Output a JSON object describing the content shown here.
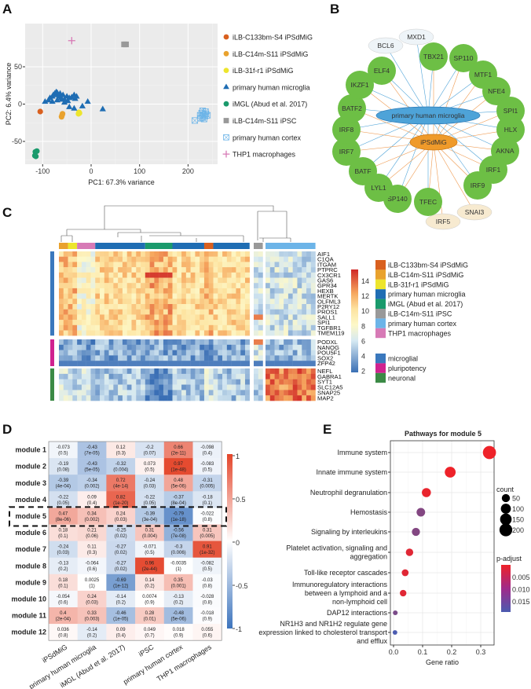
{
  "panels": {
    "a": "A",
    "b": "B",
    "c": "C",
    "d": "D",
    "e": "E"
  },
  "chart_data": [
    {
      "panel": "A",
      "type": "scatter",
      "xlabel": "PC1: 67.3% variance",
      "ylabel": "PC2: 6.4% variance",
      "xticks": [
        "-100",
        "0",
        "100",
        "200"
      ],
      "yticks": [
        "-50",
        "0",
        "50"
      ],
      "xlim": [
        -135,
        260
      ],
      "ylim": [
        -78,
        92
      ],
      "grid": true,
      "legend_placement": "right",
      "series": [
        {
          "name": "iLB-C133bm-S4 iPSdMiG",
          "marker": "circle",
          "color": "#d9601f",
          "points": [
            [
              -105,
              -10
            ]
          ]
        },
        {
          "name": "iLB-C14m-S11 iPSdMiG",
          "marker": "circle",
          "color": "#e9a22e",
          "points": [
            [
              -61,
              -17
            ],
            [
              -60,
              -15
            ],
            [
              -59,
              -13
            ]
          ]
        },
        {
          "name": "iLB-31f-r1 iPSdMiG",
          "marker": "circle",
          "color": "#ede52d",
          "points": [
            [
              -26,
              -13
            ],
            [
              -25,
              -11
            ],
            [
              -24,
              -12
            ]
          ]
        },
        {
          "name": "primary human microglia",
          "marker": "triangle",
          "color": "#1f6db3",
          "points": [
            [
              -95,
              3
            ],
            [
              -88,
              5
            ],
            [
              -85,
              8
            ],
            [
              -80,
              10
            ],
            [
              -78,
              12
            ],
            [
              -75,
              14
            ],
            [
              -72,
              16
            ],
            [
              -70,
              15
            ],
            [
              -68,
              12
            ],
            [
              -66,
              10
            ],
            [
              -64,
              14
            ],
            [
              -62,
              8
            ],
            [
              -60,
              6
            ],
            [
              -58,
              12
            ],
            [
              -55,
              6
            ],
            [
              -50,
              10
            ],
            [
              -48,
              4
            ],
            [
              -45,
              8
            ],
            [
              -40,
              9
            ],
            [
              -35,
              12
            ],
            [
              -33,
              7
            ],
            [
              -30,
              10
            ],
            [
              -55,
              2
            ],
            [
              -45,
              -4
            ],
            [
              -35,
              -6
            ],
            [
              -18,
              -3
            ],
            [
              -7,
              3
            ],
            [
              24,
              -7
            ],
            [
              -70,
              5
            ],
            [
              -80,
              3
            ]
          ]
        },
        {
          "name": "iMGL (Abud et al. 2017)",
          "marker": "circle",
          "color": "#1a9a6c",
          "points": [
            [
              -115,
              -64
            ],
            [
              -112,
              -63
            ],
            [
              -116,
              -69
            ],
            [
              -114,
              -70
            ]
          ]
        },
        {
          "name": "iLB-C14m-S11 iPSC",
          "marker": "square",
          "color": "#999999",
          "points": [
            [
              68,
              80
            ],
            [
              72,
              80
            ]
          ]
        },
        {
          "name": "primary human cortex",
          "marker": "boxed-x",
          "color": "#6cb4e8",
          "points": [
            [
              214,
              -22
            ],
            [
              225,
              -15
            ],
            [
              228,
              -12
            ],
            [
              230,
              -18
            ],
            [
              232,
              -14
            ],
            [
              235,
              -16
            ],
            [
              237,
              -13
            ],
            [
              240,
              -15
            ],
            [
              230,
              -9
            ],
            [
              233,
              -20
            ],
            [
              226,
              -19
            ],
            [
              236,
              -10
            ]
          ]
        },
        {
          "name": "THP1 macrophages",
          "marker": "plus",
          "color": "#d77ab6",
          "points": [
            [
              -40,
              85
            ]
          ]
        }
      ]
    },
    {
      "panel": "B",
      "type": "network",
      "hubs": [
        {
          "label": "primary human microglia",
          "color": "#3aa7e0"
        },
        {
          "label": "iPSdMiG",
          "color": "#ef9a2a"
        }
      ],
      "nodes": [
        {
          "label": "MXD1",
          "kind": "minor-blue"
        },
        {
          "label": "BCL6",
          "kind": "minor-blue"
        },
        {
          "label": "TBX21",
          "kind": "shared"
        },
        {
          "label": "SP110",
          "kind": "shared"
        },
        {
          "label": "MTF1",
          "kind": "shared"
        },
        {
          "label": "NFE4",
          "kind": "shared"
        },
        {
          "label": "SPI1",
          "kind": "shared"
        },
        {
          "label": "HLX",
          "kind": "shared"
        },
        {
          "label": "AKNA",
          "kind": "shared"
        },
        {
          "label": "IRF1",
          "kind": "shared"
        },
        {
          "label": "IRF9",
          "kind": "shared"
        },
        {
          "label": "SNAI3",
          "kind": "minor-orange"
        },
        {
          "label": "IRF5",
          "kind": "minor-orange"
        },
        {
          "label": "TFEC",
          "kind": "shared"
        },
        {
          "label": "SP140",
          "kind": "shared"
        },
        {
          "label": "LYL1",
          "kind": "shared"
        },
        {
          "label": "BATF",
          "kind": "shared"
        },
        {
          "label": "IRF7",
          "kind": "shared"
        },
        {
          "label": "IRF8",
          "kind": "shared"
        },
        {
          "label": "BATF2",
          "kind": "shared"
        },
        {
          "label": "IKZF1",
          "kind": "shared"
        },
        {
          "label": "ELF4",
          "kind": "shared"
        }
      ],
      "colors": {
        "shared": "#6dbf45",
        "minor-blue": "#eef4f8",
        "minor-orange": "#f7ead0",
        "edge_microglia": "#4ea3d8",
        "edge_ipsdmig": "#ef9a50"
      }
    },
    {
      "panel": "C",
      "type": "heatmap",
      "colorbar": {
        "ticks": [
          "14",
          "12",
          "10",
          "8",
          "6",
          "4",
          "2"
        ],
        "range": [
          2,
          15
        ]
      },
      "column_groups": [
        {
          "group": "iLB-C14m-S11 iPSdMiG",
          "color": "#e9a22e",
          "n": 2,
          "levels": [
            11,
            4,
            6
          ]
        },
        {
          "group": "iLB-31f-r1 iPSdMiG",
          "color": "#ede52d",
          "n": 2,
          "levels": [
            11,
            4,
            6
          ]
        },
        {
          "group": "THP1 macrophages",
          "color": "#d77ab6",
          "n": 4,
          "levels": [
            8,
            3.5,
            6
          ]
        },
        {
          "group": "primary human microglia",
          "color": "#1f6db3",
          "n": 11,
          "levels": [
            10,
            4,
            5
          ]
        },
        {
          "group": "iMGL (Abud et al. 2017)",
          "color": "#1a9a6c",
          "n": 6,
          "levels": [
            11.5,
            4,
            3
          ]
        },
        {
          "group": "primary human microglia",
          "color": "#1f6db3",
          "n": 7,
          "levels": [
            10,
            4,
            5
          ]
        },
        {
          "group": "iLB-C133bm-S4 iPSdMiG",
          "color": "#d9601f",
          "n": 2,
          "levels": [
            11,
            4,
            6
          ]
        },
        {
          "group": "primary human microglia",
          "color": "#1f6db3",
          "n": 8,
          "levels": [
            10,
            4,
            5
          ]
        },
        {
          "group": "iLB-C14m-S11 iPSC",
          "color": "#999999",
          "n": 2,
          "levels": [
            6,
            6,
            5.5
          ]
        },
        {
          "group": "primary human cortex",
          "color": "#6cb4e8",
          "n": 11,
          "levels": [
            6,
            4.5,
            13
          ]
        }
      ],
      "gene_sets": [
        {
          "name": "microglial",
          "color": "#3a78bd",
          "genes": [
            "AIF1",
            "C1QA",
            "ITGAM",
            "PTPRC",
            "CX3CR1",
            "GAS6",
            "GPR34",
            "HEXB",
            "MERTK",
            "OLFML3",
            "P2RY12",
            "PROS1",
            "SALL1",
            "SPI1",
            "TGFBR1",
            "TMEM119"
          ]
        },
        {
          "name": "pluripotency",
          "color": "#d0228f",
          "genes": [
            "PODXL",
            "NANOG",
            "POU5F1",
            "SOX2",
            "ZFP42"
          ]
        },
        {
          "name": "neuronal",
          "color": "#3b8a45",
          "genes": [
            "NEFL",
            "GABRA1",
            "SYT1",
            "SLC12A5",
            "SNAP25",
            "MAP2"
          ]
        }
      ],
      "legend": [
        "iLB-C133bm-S4 iPSdMiG",
        "iLB-C14m-S11 iPSdMiG",
        "iLB-31f-r1 iPSdMiG",
        "primary human microglia",
        "iMGL (Abud et al. 2017)",
        "iLB-C14m-S11 iPSC",
        "primary human cortex",
        "THP1 macrophages"
      ],
      "legend_colors": [
        "#d9601f",
        "#e9a22e",
        "#ede52d",
        "#1f6db3",
        "#1a9a6c",
        "#999999",
        "#6cb4e8",
        "#d77ab6"
      ]
    },
    {
      "panel": "D",
      "type": "heatmap",
      "rows": [
        "module 1",
        "module 2",
        "module 3",
        "module 4",
        "module 5",
        "module 6",
        "module 7",
        "module 8",
        "module 9",
        "module 10",
        "module 11",
        "module 12"
      ],
      "columns": [
        "iPSdMiG",
        "primary human microglia",
        "iMGL (Abud et al. 2017)",
        "iPSC",
        "primary human cortex",
        "THP1 macrophages"
      ],
      "r": [
        [
          "-0.073",
          "-0.43",
          "0.12",
          "-0.2",
          "0.66",
          "-0.098"
        ],
        [
          "-0.19",
          "-0.43",
          "-0.32",
          "0.073",
          "0.97",
          "-0.083"
        ],
        [
          "-0.39",
          "-0.34",
          "0.72",
          "-0.24",
          "0.48",
          "-0.31"
        ],
        [
          "-0.22",
          "0.09",
          "0.82",
          "-0.22",
          "-0.37",
          "-0.18"
        ],
        [
          "0.47",
          "0.34",
          "0.24",
          "-0.39",
          "-0.79",
          "-0.022"
        ],
        [
          "0.18",
          "0.21",
          "-0.25",
          "0.31",
          "-0.56",
          "0.31"
        ],
        [
          "-0.24",
          "0.11",
          "-0.27",
          "-0.071",
          "-0.3",
          "0.91"
        ],
        [
          "-0.13",
          "-0.064",
          "-0.27",
          "0.96",
          "-0.0035",
          "-0.082"
        ],
        [
          "0.18",
          "0.0025",
          "-0.69",
          "0.14",
          "0.35",
          "-0.03"
        ],
        [
          "-0.054",
          "0.24",
          "-0.14",
          "0.0074",
          "-0.13",
          "-0.028"
        ],
        [
          "0.4",
          "0.33",
          "-0.46",
          "0.28",
          "-0.48",
          "-0.018"
        ],
        [
          "0.036",
          "-0.14",
          "0.09",
          "0.049",
          "0.018",
          "0.055"
        ]
      ],
      "p": [
        [
          "(0.5)",
          "(7e-05)",
          "(0.3)",
          "(0.07)",
          "(2e-11)",
          "(0.4)"
        ],
        [
          "(0.08)",
          "(5e-05)",
          "(0.004)",
          "(0.5)",
          "(1e-48)",
          "(0.5)"
        ],
        [
          "(4e-04)",
          "(0.002)",
          "(4e-14)",
          "(0.03)",
          "(5e-06)",
          "(0.005)"
        ],
        [
          "(0.05)",
          "(0.4)",
          "(1e-20)",
          "(0.05)",
          "(8e-04)",
          "(0.1)"
        ],
        [
          "(8e-06)",
          "(0.002)",
          "(0.03)",
          "(3e-04)",
          "(1e-18)",
          "(0.8)"
        ],
        [
          "(0.1)",
          "(0.06)",
          "(0.02)",
          "(0.004)",
          "(7e-08)",
          "(0.005)"
        ],
        [
          "(0.03)",
          "(0.3)",
          "(0.02)",
          "(0.5)",
          "(0.006)",
          "(1e-32)"
        ],
        [
          "(0.2)",
          "(0.6)",
          "(0.02)",
          "(2e-44)",
          "(1)",
          "(0.5)"
        ],
        [
          "(0.1)",
          "(1)",
          "(1e-12)",
          "(0.2)",
          "(0.001)",
          "(0.8)"
        ],
        [
          "(0.6)",
          "(0.03)",
          "(0.2)",
          "(0.9)",
          "(0.2)",
          "(0.8)"
        ],
        [
          "(2e-04)",
          "(0.003)",
          "(1e-05)",
          "(0.01)",
          "(5e-06)",
          "(0.9)"
        ],
        [
          "(0.8)",
          "(0.2)",
          "(0.4)",
          "(0.7)",
          "(0.9)",
          "(0.6)"
        ]
      ],
      "highlighted_row": "module 5",
      "colorbar": {
        "ticks": [
          "1",
          "0.5",
          "0",
          "-0.5",
          "-1"
        ],
        "range": [
          -1,
          1
        ],
        "low": "#3d74bd",
        "mid": "#ffffff",
        "high": "#e4452a"
      }
    },
    {
      "panel": "E",
      "type": "scatter",
      "title": "Pathways for module 5",
      "xlabel": "Gene ratio",
      "xticks": [
        "0.0",
        "0.1",
        "0.2",
        "0.3"
      ],
      "xlim": [
        -0.01,
        0.345
      ],
      "grid": true,
      "categories": [
        [
          "Immune system"
        ],
        [
          "Innate immune system"
        ],
        [
          "Neutrophil degranulation"
        ],
        [
          "Hemostasis"
        ],
        [
          "Signaling by interleukins"
        ],
        [
          "Platelet activation, signaling and",
          "aggregation"
        ],
        [
          "Toll-like receptor cascades"
        ],
        [
          "Immunoregulatory interactions",
          "between a lymphoid and a",
          "non-lymphoid cell"
        ],
        [
          "DAP12 interactions"
        ],
        [
          "NR1H3 and NR1H2 regulate gene",
          "expression linked to cholesterol transport",
          "and efflux"
        ]
      ],
      "gene_ratio": [
        0.33,
        0.195,
        0.113,
        0.094,
        0.077,
        0.055,
        0.04,
        0.033,
        0.006,
        0.005
      ],
      "count": [
        215,
        125,
        72,
        60,
        50,
        36,
        26,
        22,
        4,
        3
      ],
      "p_adjust": [
        0.0005,
        0.0005,
        0.001,
        0.012,
        0.012,
        0.002,
        0.002,
        0.002,
        0.013,
        0.018
      ],
      "legend_count": {
        "title": "count",
        "items": [
          "50",
          "100",
          "150",
          "200"
        ]
      },
      "legend_padj": {
        "title": "p-adjust",
        "items": [
          "0.005",
          "0.010",
          "0.015"
        ],
        "low": "#ee2229",
        "high": "#4b5bb0"
      }
    }
  ]
}
